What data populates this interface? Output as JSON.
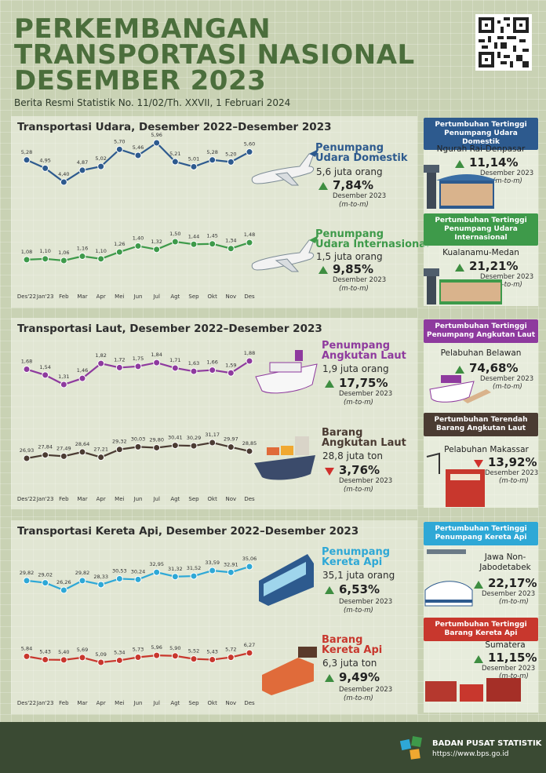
{
  "header": {
    "title_line1": "PERKEMBANGAN",
    "title_line2": "TRANSPORTASI NASIONAL",
    "title_line3": "DESEMBER 2023",
    "subtitle": "Berita Resmi Statistik No. 11/02/Th. XXVII, 1 Februari 2024"
  },
  "months": [
    "Des'22",
    "Jan'23",
    "Feb",
    "Mar",
    "Apr",
    "Mei",
    "Jun",
    "Jul",
    "Agt",
    "Sep",
    "Okt",
    "Nov",
    "Des"
  ],
  "sections": [
    {
      "title": "Transportasi Udara, Desember 2022–Desember 2023",
      "highlights": [
        {
          "badge": "Pertumbuhan Tertinggi Penumpang Udara Domestik",
          "place": "Ngurah Rai-Denpasar",
          "pct": "11,14%",
          "date": "Desember 2023",
          "mtm": "(m-to-m)",
          "color": "#2d5a8e",
          "dir": "up"
        },
        {
          "badge": "Pertumbuhan Tertinggi Penumpang Udara Internasional",
          "place": "Kualanamu-Medan",
          "pct": "21,21%",
          "date": "Desember 2023",
          "mtm": "(m-to-m)",
          "color": "#3e9a4a",
          "dir": "up"
        }
      ]
    },
    {
      "title": "Transportasi Laut, Desember 2022–Desember 2023",
      "highlights": [
        {
          "badge": "Pertumbuhan Tertinggi Penumpang Angkutan Laut",
          "place": "Pelabuhan Belawan",
          "pct": "74,68%",
          "date": "Desember 2023",
          "mtm": "(m-to-m)",
          "color": "#8e3a9e",
          "dir": "up"
        },
        {
          "badge": "Pertumbuhan Terendah Barang Angkutan Laut",
          "place": "Pelabuhan Makassar",
          "pct": "13,92%",
          "date": "Desember 2023",
          "mtm": "(m-to-m)",
          "color": "#4a3b32",
          "dir": "down"
        }
      ]
    },
    {
      "title": "Transportasi Kereta Api, Desember 2022–Desember 2023",
      "highlights": [
        {
          "badge": "Pertumbuhan Tertinggi Penumpang Kereta Api",
          "place": "Jawa Non-Jabodetabek",
          "pct": "22,17%",
          "date": "Desember 2023",
          "mtm": "(m-to-m)",
          "color": "#2ea8d6",
          "dir": "up"
        },
        {
          "badge": "Pertumbuhan Tertinggi Barang Kereta Api",
          "place": "Sumatera",
          "pct": "11,15%",
          "date": "Desember 2023",
          "mtm": "(m-to-m)",
          "color": "#c8372d",
          "dir": "up"
        }
      ]
    }
  ],
  "chart_data": [
    {
      "type": "line",
      "name_line1": "Penumpang",
      "name_line2": "Udara Domestik",
      "total": "5,6 juta orang",
      "pct": "7,84%",
      "dir": "up",
      "date": "Desember 2023",
      "mtm": "(m-to-m)",
      "color": "#2d5a8e",
      "labels": [
        "5,28",
        "4,95",
        "4,40",
        "4,87",
        "5,02",
        "5,70",
        "5,46",
        "5,96",
        "5,21",
        "5,01",
        "5,28",
        "5,20",
        "5,60"
      ],
      "values": [
        5.28,
        4.95,
        4.4,
        4.87,
        5.02,
        5.7,
        5.46,
        5.96,
        5.21,
        5.01,
        5.28,
        5.2,
        5.6
      ]
    },
    {
      "type": "line",
      "name_line1": "Penumpang",
      "name_line2": "Udara Internasional",
      "total": "1,5 juta orang",
      "pct": "9,85%",
      "dir": "up",
      "date": "Desember 2023",
      "mtm": "(m-to-m)",
      "color": "#3e9a4a",
      "labels": [
        "1,08",
        "1,10",
        "1,06",
        "1,16",
        "1,10",
        "1,26",
        "1,40",
        "1,32",
        "1,50",
        "1,44",
        "1,45",
        "1,34",
        "1,48"
      ],
      "values": [
        1.08,
        1.1,
        1.06,
        1.16,
        1.1,
        1.26,
        1.4,
        1.32,
        1.5,
        1.44,
        1.45,
        1.34,
        1.48
      ]
    },
    {
      "type": "line",
      "name_line1": "Penumpang",
      "name_line2": "Angkutan Laut",
      "total": "1,9 juta orang",
      "pct": "17,75%",
      "dir": "up",
      "date": "Desember 2023",
      "mtm": "(m-to-m)",
      "color": "#8e3a9e",
      "labels": [
        "1,68",
        "1,54",
        "1,31",
        "1,46",
        "1,82",
        "1,72",
        "1,75",
        "1,84",
        "1,71",
        "1,63",
        "1,66",
        "1,59",
        "1,88"
      ],
      "values": [
        1.68,
        1.54,
        1.31,
        1.46,
        1.82,
        1.72,
        1.75,
        1.84,
        1.71,
        1.63,
        1.66,
        1.59,
        1.88
      ]
    },
    {
      "type": "line",
      "name_line1": "Barang",
      "name_line2": "Angkutan Laut",
      "total": "28,8 juta ton",
      "pct": "3,76%",
      "dir": "down",
      "date": "Desember 2023",
      "mtm": "(m-to-m)",
      "color": "#4a3b32",
      "labels": [
        "26,93",
        "27,84",
        "27,49",
        "28,64",
        "27,21",
        "29,32",
        "30,03",
        "29,80",
        "30,41",
        "30,29",
        "31,17",
        "29,97",
        "28,85"
      ],
      "values": [
        26.93,
        27.84,
        27.49,
        28.64,
        27.21,
        29.32,
        30.03,
        29.8,
        30.41,
        30.29,
        31.17,
        29.97,
        28.85
      ]
    },
    {
      "type": "line",
      "name_line1": "Penumpang",
      "name_line2": "Kereta Api",
      "total": "35,1 juta orang",
      "pct": "6,53%",
      "dir": "up",
      "date": "Desember 2023",
      "mtm": "(m-to-m)",
      "color": "#2ea8d6",
      "labels": [
        "29,82",
        "29,02",
        "26,26",
        "29,82",
        "28,33",
        "30,53",
        "30,24",
        "32,95",
        "31,32",
        "31,52",
        "33,59",
        "32,91",
        "35,06"
      ],
      "values": [
        29.82,
        29.02,
        26.26,
        29.82,
        28.33,
        30.53,
        30.24,
        32.95,
        31.32,
        31.52,
        33.59,
        32.91,
        35.06
      ]
    },
    {
      "type": "line",
      "name_line1": "Barang",
      "name_line2": "Kereta Api",
      "total": "6,3 juta ton",
      "pct": "9,49%",
      "dir": "up",
      "date": "Desember 2023",
      "mtm": "(m-to-m)",
      "color": "#c8372d",
      "labels": [
        "5,84",
        "5,43",
        "5,40",
        "5,69",
        "5,09",
        "5,34",
        "5,73",
        "5,96",
        "5,90",
        "5,52",
        "5,43",
        "5,72",
        "6,27"
      ],
      "values": [
        5.84,
        5.43,
        5.4,
        5.69,
        5.09,
        5.34,
        5.73,
        5.96,
        5.9,
        5.52,
        5.43,
        5.72,
        6.27
      ]
    }
  ],
  "footer": {
    "org": "BADAN PUSAT STATISTIK",
    "url": "https://www.bps.go.id"
  }
}
